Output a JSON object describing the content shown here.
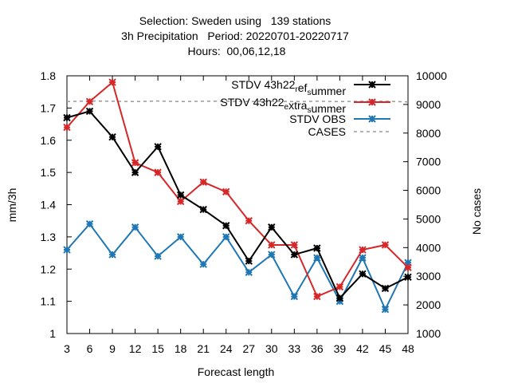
{
  "chart_data": {
    "type": "line",
    "title_lines": [
      "Selection: Sweden using   139 stations",
      "3h Precipitation   Period: 20220701-20220717",
      "Hours:  00,06,12,18"
    ],
    "xlabel": "Forecast length",
    "ylabel": "mm/3h",
    "y2label": "No cases",
    "x": [
      3,
      6,
      9,
      12,
      15,
      18,
      21,
      24,
      27,
      30,
      33,
      36,
      39,
      42,
      45,
      48
    ],
    "ylim": [
      1.0,
      1.8
    ],
    "yticks": [
      1,
      1.1,
      1.2,
      1.3,
      1.4,
      1.5,
      1.6,
      1.7,
      1.8
    ],
    "y2lim": [
      1000,
      10000
    ],
    "y2ticks": [
      1000,
      2000,
      3000,
      4000,
      5000,
      6000,
      7000,
      8000,
      9000,
      10000
    ],
    "legend_position": "top-right",
    "series": [
      {
        "name": "STDV 43h22_ref_summer",
        "name_parts": [
          [
            "STDV 43h22",
            ""
          ],
          [
            "r",
            "sub"
          ],
          [
            "ef",
            ""
          ],
          [
            "s",
            "sub"
          ],
          [
            "ummer",
            ""
          ]
        ],
        "axis": "y1",
        "color": "#000000",
        "marker": "x-star",
        "values": [
          1.67,
          1.69,
          1.61,
          1.5,
          1.58,
          1.43,
          1.385,
          1.335,
          1.225,
          1.33,
          1.245,
          1.265,
          1.11,
          1.185,
          1.14,
          1.175
        ]
      },
      {
        "name": "STDV 43h22_extra_summer",
        "name_parts": [
          [
            "STDV 43h22",
            ""
          ],
          [
            "e",
            "sub"
          ],
          [
            "xtra",
            ""
          ],
          [
            "s",
            "sub"
          ],
          [
            "ummer",
            ""
          ]
        ],
        "axis": "y1",
        "color": "#d62728",
        "marker": "x-star",
        "values": [
          1.64,
          1.72,
          1.78,
          1.53,
          1.5,
          1.41,
          1.47,
          1.44,
          1.35,
          1.275,
          1.275,
          1.115,
          1.145,
          1.26,
          1.275,
          1.205
        ]
      },
      {
        "name": "STDV OBS",
        "name_parts": [
          [
            "STDV OBS",
            ""
          ]
        ],
        "axis": "y1",
        "color": "#1f77b4",
        "marker": "x-star",
        "values": [
          1.26,
          1.34,
          1.245,
          1.33,
          1.24,
          1.3,
          1.215,
          1.3,
          1.19,
          1.245,
          1.115,
          1.235,
          1.1,
          1.235,
          1.075,
          1.22
        ]
      },
      {
        "name": "CASES",
        "name_parts": [
          [
            "CASES",
            ""
          ]
        ],
        "axis": "y2",
        "color": "#999999",
        "dashed": true,
        "marker": "none",
        "values": [
          9100,
          9120,
          9110,
          9100,
          9120,
          9100,
          9110,
          9110,
          9100,
          9110,
          9100,
          9110,
          9100,
          9110,
          9110,
          9090
        ]
      }
    ]
  }
}
